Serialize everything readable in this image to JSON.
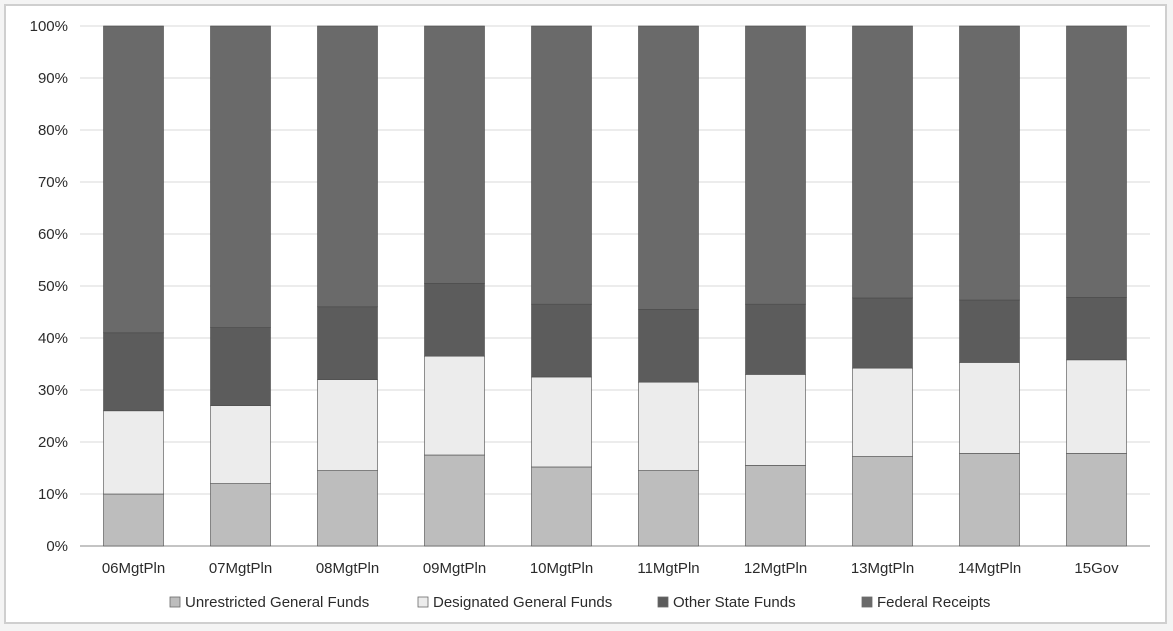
{
  "chart_data": {
    "type": "bar",
    "stacked": true,
    "percent": true,
    "categories": [
      "06MgtPln",
      "07MgtPln",
      "08MgtPln",
      "09MgtPln",
      "10MgtPln",
      "11MgtPln",
      "12MgtPln",
      "13MgtPln",
      "14MgtPln",
      "15Gov"
    ],
    "series": [
      {
        "name": "Unrestricted General Funds",
        "color": "#bdbdbd",
        "values": [
          10,
          12,
          14.5,
          17.5,
          15.2,
          14.5,
          15.5,
          17.2,
          17.8,
          17.8
        ]
      },
      {
        "name": "Designated General Funds",
        "color": "#ececec",
        "values": [
          16,
          15,
          17.5,
          19,
          17.3,
          17,
          17.5,
          17,
          17.5,
          18
        ]
      },
      {
        "name": "Other State Funds",
        "color": "#5c5c5c",
        "values": [
          15,
          15,
          14,
          14,
          14,
          14,
          13.5,
          13.5,
          12,
          12
        ]
      },
      {
        "name": "Federal Receipts",
        "color": "#6a6a6a",
        "values": [
          59,
          58,
          54,
          49.5,
          53.5,
          54.5,
          53.5,
          52.3,
          52.7,
          52.2
        ]
      }
    ],
    "y_ticks": [
      "0%",
      "10%",
      "20%",
      "30%",
      "40%",
      "50%",
      "60%",
      "70%",
      "80%",
      "90%",
      "100%"
    ],
    "ylim": [
      0,
      100
    ],
    "grid": true,
    "legend_position": "bottom",
    "title": "",
    "xlabel": "",
    "ylabel": ""
  }
}
